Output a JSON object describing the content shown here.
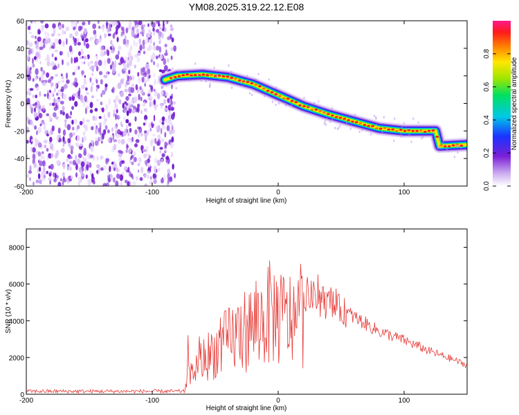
{
  "title": "YM08.2025.319.22.12.E08",
  "colors": {
    "snr_line": "#e53935",
    "rainbow_low": "#7b1fd6",
    "rainbow_high": "#ff1a8c"
  },
  "chart_data": [
    {
      "id": "spectrogram",
      "type": "heatmap",
      "xlabel": "Height of straight line (km)",
      "ylabel": "Frequency (Hz)",
      "xlim": [
        -200,
        150
      ],
      "ylim": [
        -60,
        60
      ],
      "xticks": [
        -200,
        -100,
        0,
        100
      ],
      "yticks": [
        -60,
        -40,
        -20,
        0,
        20,
        40,
        60
      ],
      "noise_region_x": [
        -200,
        -82
      ],
      "ridge": [
        {
          "x": -90,
          "y": 17
        },
        {
          "x": -80,
          "y": 20
        },
        {
          "x": -60,
          "y": 21
        },
        {
          "x": -40,
          "y": 19
        },
        {
          "x": -20,
          "y": 14
        },
        {
          "x": 0,
          "y": 6
        },
        {
          "x": 20,
          "y": -2
        },
        {
          "x": 40,
          "y": -8
        },
        {
          "x": 60,
          "y": -13
        },
        {
          "x": 80,
          "y": -18
        },
        {
          "x": 100,
          "y": -20
        },
        {
          "x": 125,
          "y": -20
        },
        {
          "x": 128,
          "y": -31
        },
        {
          "x": 150,
          "y": -30
        }
      ],
      "colorbar": {
        "label": "Normalized spectral amplitude",
        "range": [
          0,
          1
        ],
        "ticks": [
          "0.0",
          "0.2",
          "0.4",
          "0.6",
          "0.8"
        ]
      }
    },
    {
      "id": "snr",
      "type": "line",
      "xlabel": "Height of straight line (km)",
      "ylabel": "SNR (10 * v/v)",
      "xlim": [
        -200,
        150
      ],
      "ylim": [
        0,
        9000
      ],
      "xticks": [
        -200,
        -100,
        0,
        100
      ],
      "yticks": [
        0,
        2000,
        4000,
        6000,
        8000
      ],
      "envelope": [
        {
          "x": -200,
          "y": 150
        },
        {
          "x": -76,
          "y": 150
        },
        {
          "x": -72,
          "y": 1200
        },
        {
          "x": -60,
          "y": 2500
        },
        {
          "x": -45,
          "y": 3500
        },
        {
          "x": -30,
          "y": 4500
        },
        {
          "x": -15,
          "y": 5200
        },
        {
          "x": -5,
          "y": 6000
        },
        {
          "x": 5,
          "y": 5400
        },
        {
          "x": 20,
          "y": 5600
        },
        {
          "x": 35,
          "y": 5200
        },
        {
          "x": 50,
          "y": 4700
        },
        {
          "x": 65,
          "y": 4100
        },
        {
          "x": 80,
          "y": 3500
        },
        {
          "x": 100,
          "y": 3000
        },
        {
          "x": 120,
          "y": 2400
        },
        {
          "x": 140,
          "y": 1900
        },
        {
          "x": 150,
          "y": 1600
        }
      ]
    }
  ]
}
